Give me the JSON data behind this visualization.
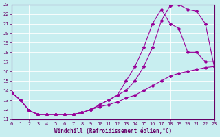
{
  "xlabel": "Windchill (Refroidissement éolien,°C)",
  "bg_color": "#c8eef0",
  "line_color": "#990099",
  "xlim": [
    0,
    23
  ],
  "ylim": [
    11,
    23
  ],
  "xticks": [
    0,
    1,
    2,
    3,
    4,
    5,
    6,
    7,
    8,
    9,
    10,
    11,
    12,
    13,
    14,
    15,
    16,
    17,
    18,
    19,
    20,
    21,
    22,
    23
  ],
  "yticks": [
    11,
    12,
    13,
    14,
    15,
    16,
    17,
    18,
    19,
    20,
    21,
    22,
    23
  ],
  "line1_x": [
    0,
    1,
    2,
    3,
    4,
    5,
    6,
    7,
    8,
    9,
    10,
    11,
    12,
    13,
    14,
    15,
    16,
    17,
    18,
    19,
    20,
    21,
    22,
    23
  ],
  "line1_y": [
    13.8,
    13.0,
    11.9,
    11.5,
    11.5,
    11.5,
    11.5,
    11.5,
    11.7,
    12.0,
    12.5,
    13.0,
    13.5,
    14.0,
    15.0,
    16.5,
    18.5,
    21.3,
    22.9,
    23.0,
    22.5,
    22.3,
    21.0,
    16.5
  ],
  "line2_x": [
    0,
    1,
    2,
    3,
    4,
    5,
    6,
    7,
    8,
    9,
    10,
    11,
    12,
    13,
    14,
    15,
    16,
    17,
    18,
    19,
    20,
    21,
    22,
    23
  ],
  "line2_y": [
    13.8,
    13.0,
    11.9,
    11.5,
    11.5,
    11.5,
    11.5,
    11.5,
    11.7,
    12.0,
    12.5,
    13.0,
    13.5,
    15.0,
    16.5,
    18.5,
    21.0,
    22.5,
    21.0,
    20.5,
    18.0,
    18.0,
    17.0,
    17.0
  ],
  "line3_x": [
    0,
    1,
    2,
    3,
    4,
    5,
    6,
    7,
    8,
    9,
    10,
    11,
    12,
    13,
    14,
    15,
    16,
    17,
    18,
    19,
    20,
    21,
    22,
    23
  ],
  "line3_y": [
    13.8,
    13.0,
    11.9,
    11.5,
    11.5,
    11.5,
    11.5,
    11.5,
    11.7,
    12.0,
    12.3,
    12.5,
    12.8,
    13.2,
    13.5,
    14.0,
    14.5,
    15.0,
    15.5,
    15.8,
    16.0,
    16.2,
    16.4,
    16.5
  ]
}
